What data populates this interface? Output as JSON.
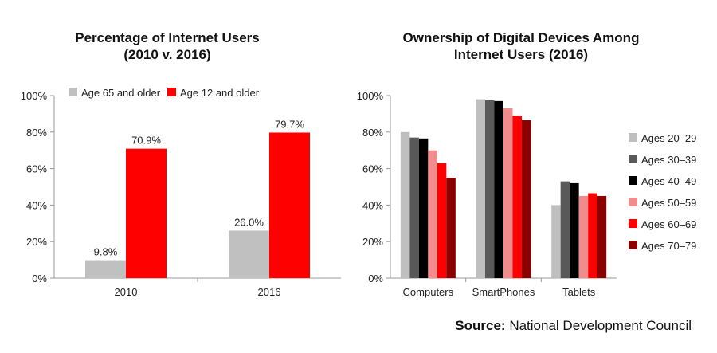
{
  "chart_data": [
    {
      "type": "bar",
      "title": [
        "Percentage of Internet Users",
        "(2010 v. 2016)"
      ],
      "categories": [
        "2010",
        "2016"
      ],
      "series": [
        {
          "name": "Age 65 and older",
          "values": [
            9.8,
            26.0
          ],
          "color": "#c0c0c0"
        },
        {
          "name": "Age 12 and older",
          "values": [
            70.9,
            79.7
          ],
          "color": "#ff0000"
        }
      ],
      "data_labels": [
        [
          "9.8%",
          "26.0%"
        ],
        [
          "70.9%",
          "79.7%"
        ]
      ],
      "yticks": [
        "0%",
        "20%",
        "40%",
        "60%",
        "80%",
        "100%"
      ],
      "ylim": [
        0,
        100
      ],
      "legend_position": "top"
    },
    {
      "type": "bar",
      "title": [
        "Ownership of Digital Devices Among",
        "Internet Users (2016)"
      ],
      "categories": [
        "Computers",
        "SmartPhones",
        "Tablets"
      ],
      "series": [
        {
          "name": "Ages 20–29",
          "values": [
            80,
            98,
            40
          ],
          "color": "#bfbfbf"
        },
        {
          "name": "Ages 30–39",
          "values": [
            77,
            97.5,
            53
          ],
          "color": "#595959"
        },
        {
          "name": "Ages 40–49",
          "values": [
            76.5,
            97,
            52
          ],
          "color": "#000000"
        },
        {
          "name": "Ages 50–59",
          "values": [
            70,
            93,
            45
          ],
          "color": "#f28b8b"
        },
        {
          "name": "Ages 60–69",
          "values": [
            63,
            89,
            46.5
          ],
          "color": "#ff0000"
        },
        {
          "name": "Ages 70–79",
          "values": [
            55,
            86.5,
            45
          ],
          "color": "#8b0000"
        }
      ],
      "yticks": [
        "0%",
        "20%",
        "40%",
        "60%",
        "80%",
        "100%"
      ],
      "ylim": [
        0,
        100
      ],
      "legend_position": "right"
    }
  ],
  "source": {
    "label": "Source:",
    "text": " National Development Council"
  }
}
